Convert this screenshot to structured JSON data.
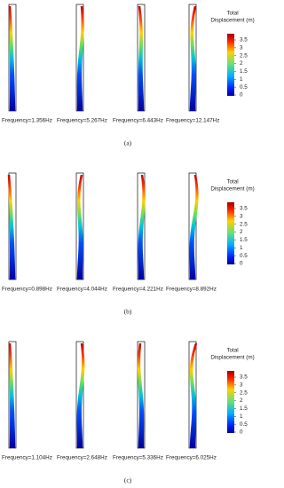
{
  "panels": [
    {
      "label": "(a)",
      "frequencies": [
        "Frequency=1.356Hz",
        "Frequency=5.267Hz",
        "Frequency=6.443Hz",
        "Frequency=12.147Hz"
      ],
      "colorbar": {
        "title_lines": [
          "Total",
          "Displacement (m)"
        ],
        "ticks": [
          3.5,
          3,
          2.5,
          2,
          1.5,
          1,
          0.5,
          0
        ]
      }
    },
    {
      "label": "(b)",
      "frequencies": [
        "Frequency=0.898Hz",
        "Frequency=4.044Hz",
        "Frequency=4.221Hz",
        "Frequency=8.892Hz"
      ],
      "colorbar": {
        "title_lines": [
          "Total",
          "Displacement (m)"
        ],
        "ticks": [
          3.5,
          3,
          2.5,
          2,
          1.5,
          1,
          0.5,
          0
        ]
      }
    },
    {
      "label": "(c)",
      "frequencies": [
        "Frequency=1.104Hz",
        "Frequency=2.648Hz",
        "Frequency=5.336Hz",
        "Frequency=6.025Hz"
      ],
      "colorbar": {
        "title_lines": [
          "Total",
          "Displacement (m)"
        ],
        "ticks": [
          3.5,
          3,
          2.5,
          2,
          1.5,
          1,
          0.5,
          0
        ]
      }
    }
  ]
}
